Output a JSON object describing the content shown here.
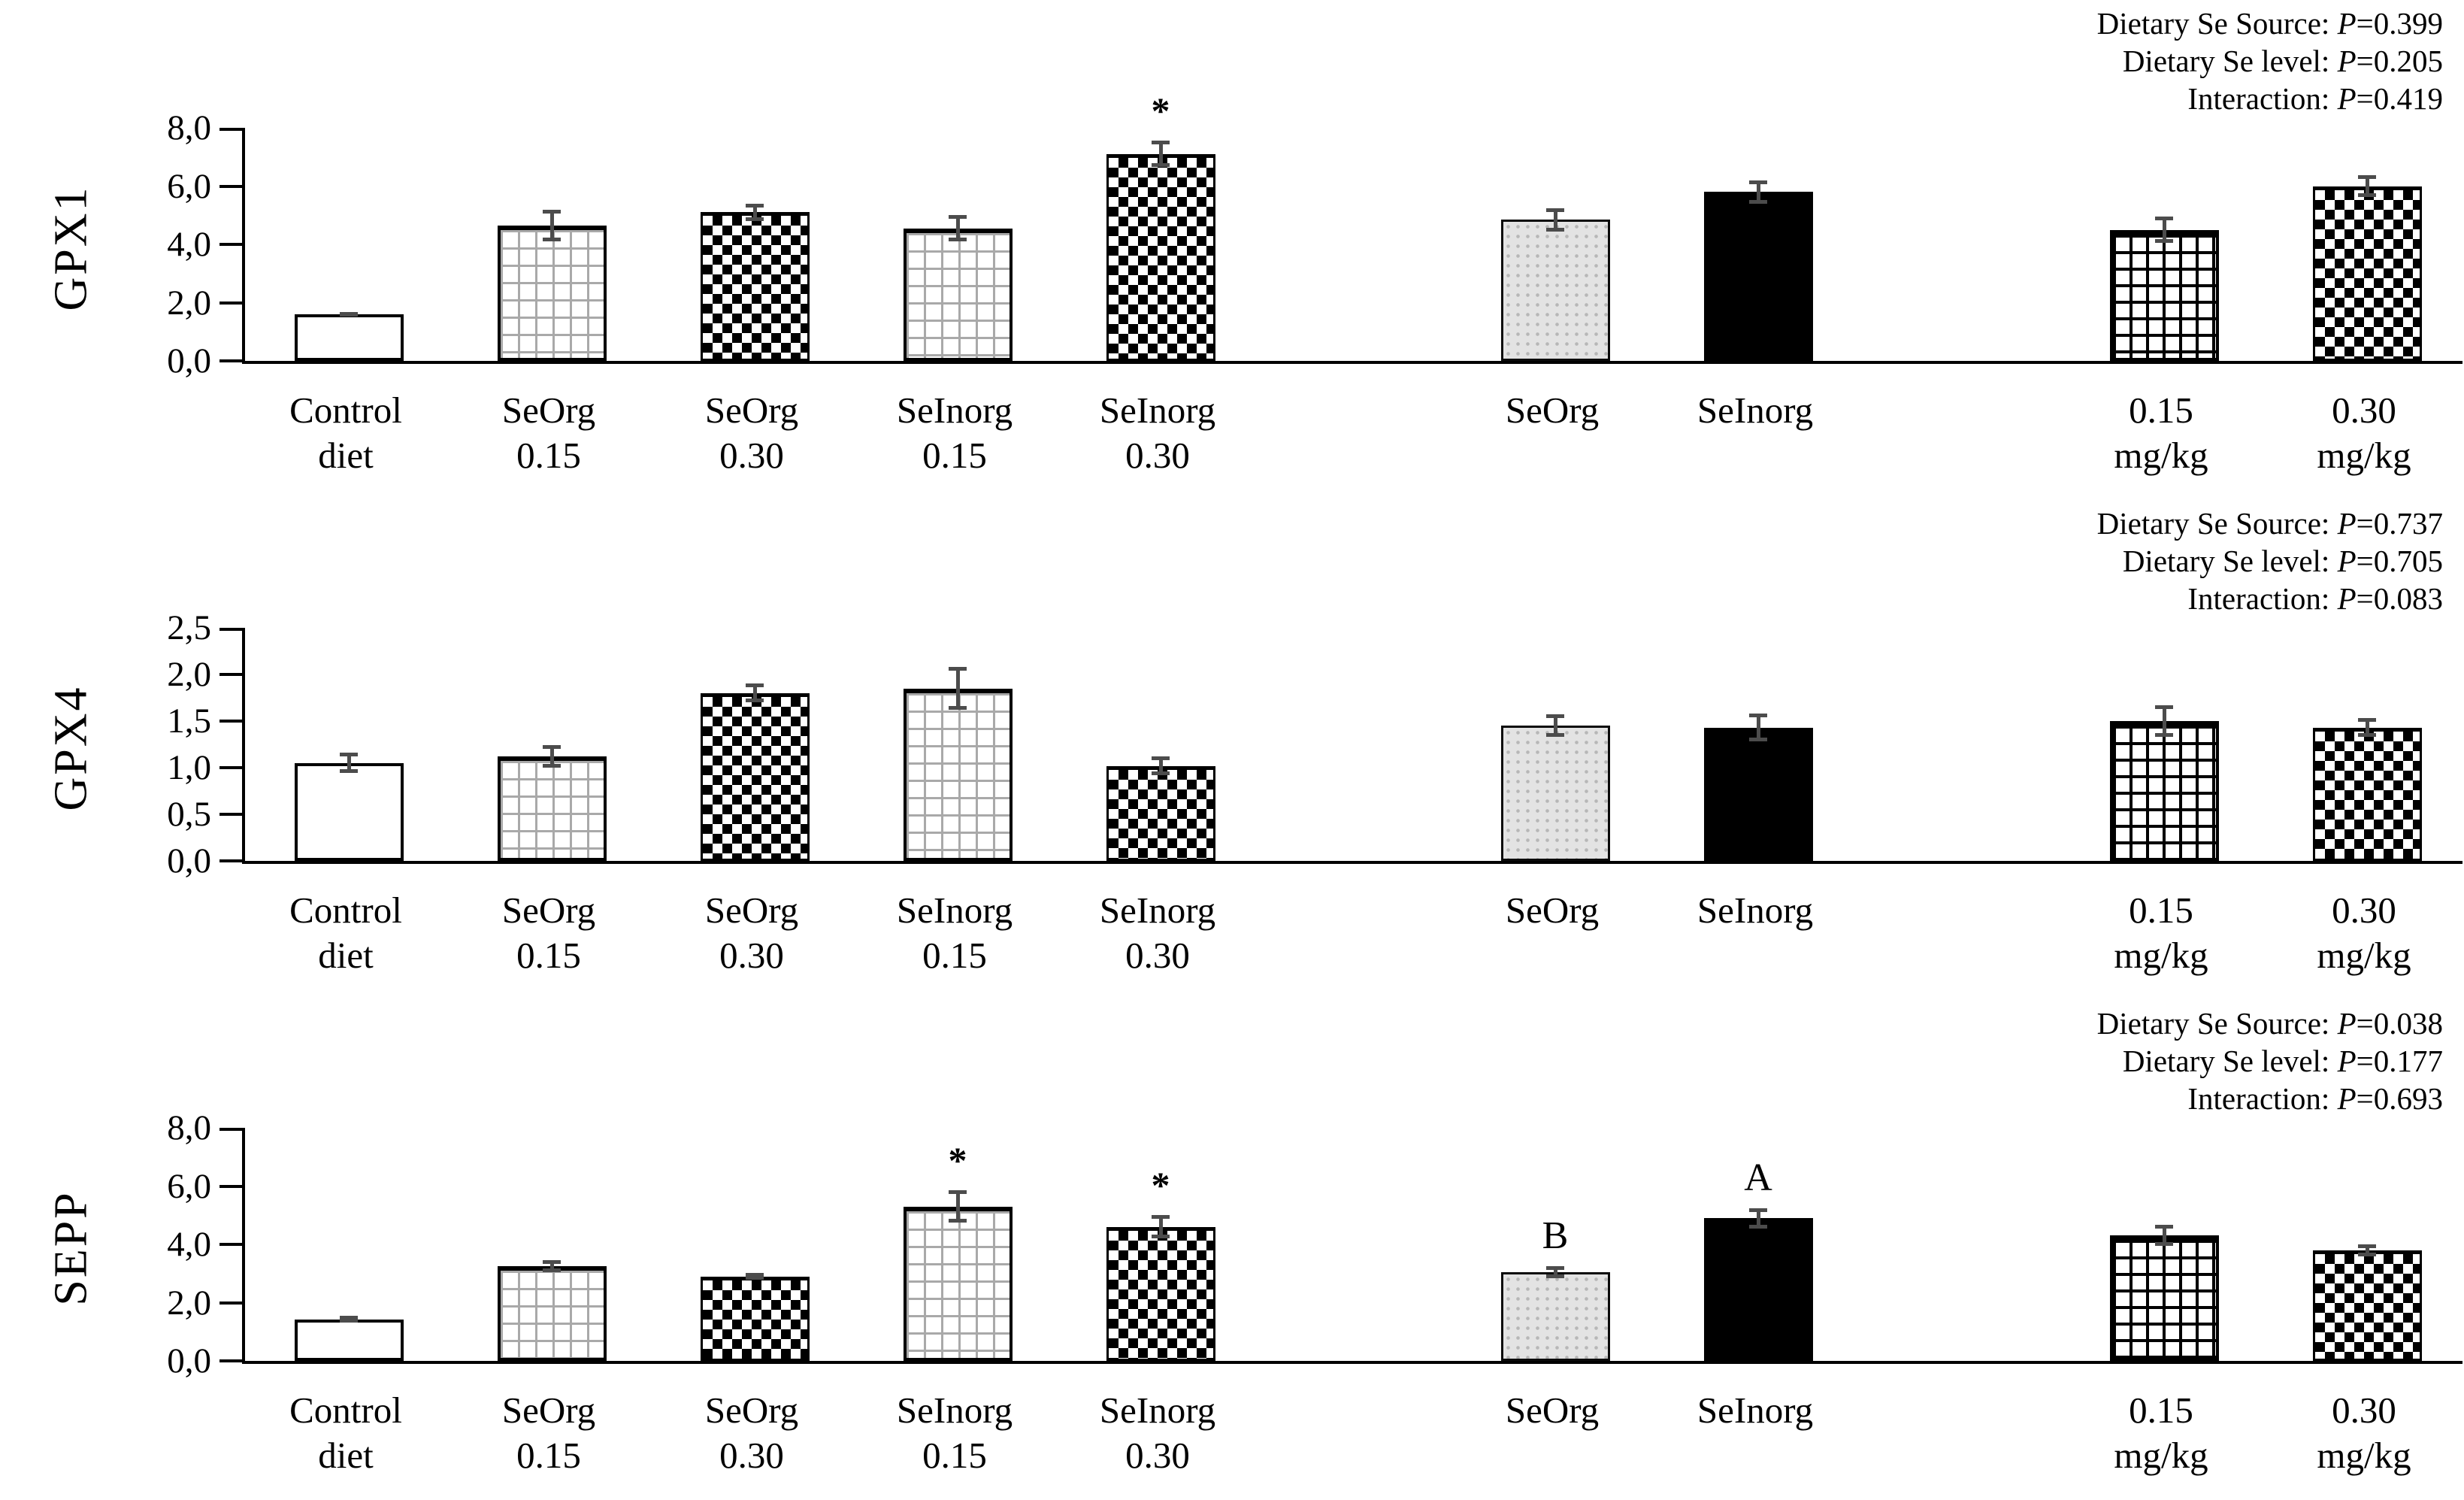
{
  "figure_title": "",
  "accent_colors": {
    "bar_black": "#000000",
    "bar_gray": "#e3e3e3",
    "error_bar": "#4c4c4c",
    "grid_line_gray": "#a9a9a9"
  },
  "chart_data": [
    {
      "type": "bar",
      "title": "GPX1",
      "ylabel": "GPX1",
      "xlabel": "",
      "ylim": [
        0,
        8
      ],
      "grid": false,
      "legend_position": "none",
      "yticks": [
        {
          "value": 0,
          "label": "0,0"
        },
        {
          "value": 2,
          "label": "2,0"
        },
        {
          "value": 4,
          "label": "4,0"
        },
        {
          "value": 6,
          "label": "6,0"
        },
        {
          "value": 8,
          "label": "8,0"
        }
      ],
      "categories": [
        "Control diet",
        "SeOrg 0.15",
        "SeOrg 0.30",
        "SeInorg 0.15",
        "SeInorg 0.30",
        "SeOrg",
        "SeInorg",
        "0.15 mg/kg",
        "0.30 mg/kg"
      ],
      "label_lines": [
        [
          "Control",
          "diet"
        ],
        [
          "SeOrg",
          "0.15"
        ],
        [
          "SeOrg",
          "0.30"
        ],
        [
          "SeInorg",
          "0.15"
        ],
        [
          "SeInorg",
          "0.30"
        ],
        [
          "SeOrg",
          ""
        ],
        [
          "SeInorg",
          ""
        ],
        [
          "0.15",
          "mg/kg"
        ],
        [
          "0.30",
          "mg/kg"
        ]
      ],
      "values": [
        1.6,
        4.65,
        5.1,
        4.55,
        7.1,
        4.85,
        5.8,
        4.5,
        6.0
      ],
      "errors": [
        0.07,
        0.55,
        0.3,
        0.45,
        0.45,
        0.4,
        0.4,
        0.46,
        0.37
      ],
      "annotations": [
        "",
        "",
        "",
        "",
        "*",
        "",
        "",
        "",
        ""
      ],
      "patterns": [
        "plain",
        "grid",
        "checker",
        "grid",
        "checker",
        "gray",
        "black",
        "grid-dark",
        "checker"
      ],
      "stats": [
        {
          "label": "Dietary  Se Source:",
          "value": "P=0.399"
        },
        {
          "label": "Dietary  Se level:",
          "value": "P=0.205"
        },
        {
          "label": "Interaction:",
          "value": "P=0.419"
        }
      ]
    },
    {
      "type": "bar",
      "title": "GPX4",
      "ylabel": "GPX4",
      "xlabel": "",
      "ylim": [
        0,
        2.5
      ],
      "grid": false,
      "legend_position": "none",
      "yticks": [
        {
          "value": 0,
          "label": "0,0"
        },
        {
          "value": 0.5,
          "label": "0,5"
        },
        {
          "value": 1.0,
          "label": "1,0"
        },
        {
          "value": 1.5,
          "label": "1,5"
        },
        {
          "value": 2.0,
          "label": "2,0"
        },
        {
          "value": 2.5,
          "label": "2,5"
        }
      ],
      "categories": [
        "Control diet",
        "SeOrg 0.15",
        "SeOrg 0.30",
        "SeInorg 0.15",
        "SeInorg 0.30",
        "SeOrg",
        "SeInorg",
        "0.15 mg/kg",
        "0.30 mg/kg"
      ],
      "label_lines": [
        [
          "Control",
          "diet"
        ],
        [
          "SeOrg",
          "0.15"
        ],
        [
          "SeOrg",
          "0.30"
        ],
        [
          "SeInorg",
          "0.15"
        ],
        [
          "SeInorg",
          "0.30"
        ],
        [
          "SeOrg",
          ""
        ],
        [
          "SeInorg",
          ""
        ],
        [
          "0.15",
          "mg/kg"
        ],
        [
          "0.30",
          "mg/kg"
        ]
      ],
      "values": [
        1.05,
        1.12,
        1.8,
        1.85,
        1.02,
        1.45,
        1.43,
        1.5,
        1.43
      ],
      "errors": [
        0.11,
        0.12,
        0.1,
        0.23,
        0.1,
        0.12,
        0.15,
        0.17,
        0.1
      ],
      "annotations": [
        "",
        "",
        "",
        "",
        "",
        "",
        "",
        "",
        ""
      ],
      "patterns": [
        "plain",
        "grid",
        "checker",
        "grid",
        "checker",
        "gray",
        "black",
        "grid-dark",
        "checker"
      ],
      "stats": [
        {
          "label": "Dietary  Se Source:",
          "value": "P=0.737"
        },
        {
          "label": "Dietary  Se level:",
          "value": "P=0.705"
        },
        {
          "label": "Interaction:",
          "value": "P=0.083"
        }
      ]
    },
    {
      "type": "bar",
      "title": "SEPP",
      "ylabel": "SEPP",
      "xlabel": "",
      "ylim": [
        0,
        8
      ],
      "grid": false,
      "legend_position": "none",
      "yticks": [
        {
          "value": 0,
          "label": "0,0"
        },
        {
          "value": 2,
          "label": "2,0"
        },
        {
          "value": 4,
          "label": "4,0"
        },
        {
          "value": 6,
          "label": "6,0"
        },
        {
          "value": 8,
          "label": "8,0"
        }
      ],
      "categories": [
        "Control diet",
        "SeOrg 0.15",
        "SeOrg 0.30",
        "SeInorg 0.15",
        "SeInorg 0.30",
        "SeOrg",
        "SeInorg",
        "0.15 mg/kg",
        "0.30 mg/kg"
      ],
      "label_lines": [
        [
          "Control",
          "diet"
        ],
        [
          "SeOrg",
          "0.15"
        ],
        [
          "SeOrg",
          "0.30"
        ],
        [
          "SeInorg",
          "0.15"
        ],
        [
          "SeInorg",
          "0.30"
        ],
        [
          "SeOrg",
          ""
        ],
        [
          "SeInorg",
          ""
        ],
        [
          "0.15",
          "mg/kg"
        ],
        [
          "0.30",
          "mg/kg"
        ]
      ],
      "values": [
        1.43,
        3.25,
        2.9,
        5.3,
        4.6,
        3.05,
        4.9,
        4.3,
        3.8
      ],
      "errors": [
        0.12,
        0.2,
        0.12,
        0.55,
        0.4,
        0.2,
        0.35,
        0.36,
        0.2
      ],
      "annotations": [
        "",
        "",
        "",
        "*",
        "*",
        "B",
        "A",
        "",
        ""
      ],
      "patterns": [
        "plain",
        "grid",
        "checker",
        "grid",
        "checker",
        "gray",
        "black",
        "grid-dark",
        "checker"
      ],
      "stats": [
        {
          "label": "Dietary  Se Source:",
          "value": "P=0.038"
        },
        {
          "label": "Dietary  Se level:",
          "value": "P=0.177"
        },
        {
          "label": "Interaction:",
          "value": "P=0.693"
        }
      ]
    }
  ]
}
